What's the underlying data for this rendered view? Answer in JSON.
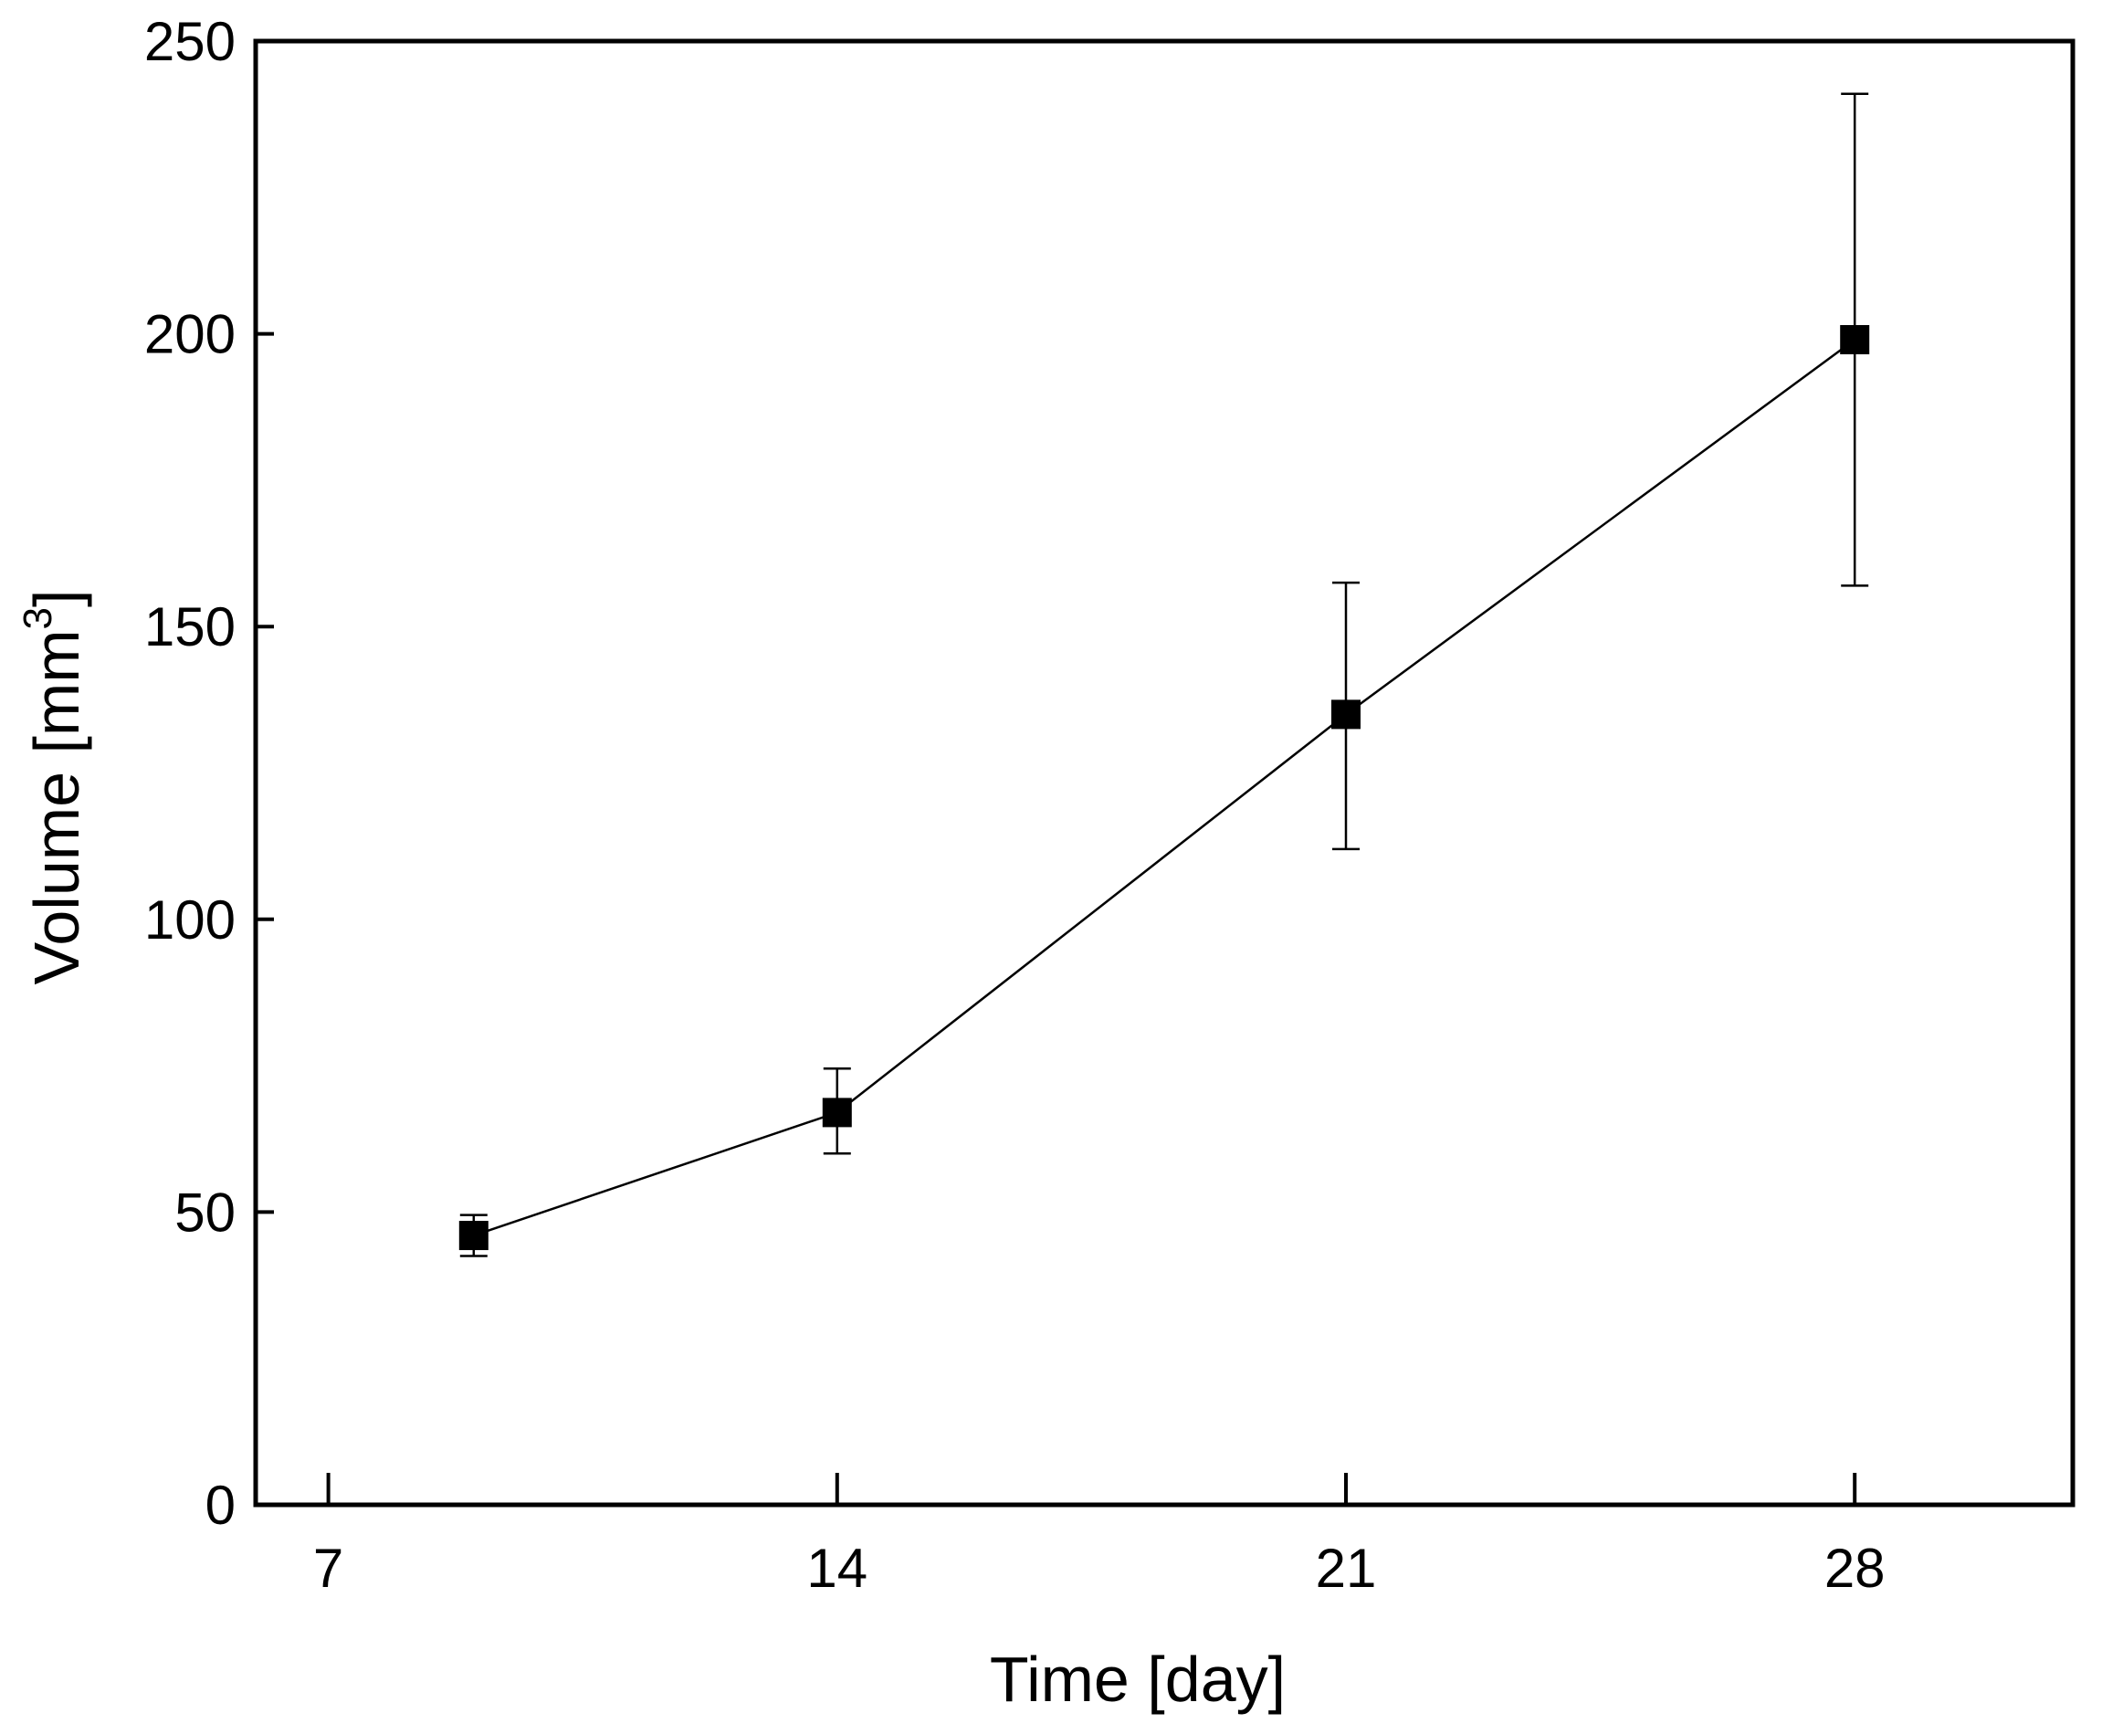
{
  "chart_data": {
    "type": "line",
    "title": "",
    "xlabel": "Time [day]",
    "ylabel": {
      "text": "Volume [mm",
      "superscript": "3",
      "close": "]"
    },
    "x_ticks": [
      7,
      14,
      21,
      28
    ],
    "y_ticks": [
      0,
      50,
      100,
      150,
      200,
      250
    ],
    "xlim": [
      6,
      31
    ],
    "ylim": [
      0,
      250
    ],
    "grid": false,
    "legend": "none",
    "series": [
      {
        "marker": "square",
        "color": "#000000",
        "x": [
          9,
          14,
          21,
          28
        ],
        "y": [
          46,
          67,
          135,
          199
        ],
        "error_low": [
          42.5,
          60,
          112,
          157
        ],
        "error_high": [
          49.5,
          74.5,
          157.5,
          241
        ]
      }
    ]
  }
}
